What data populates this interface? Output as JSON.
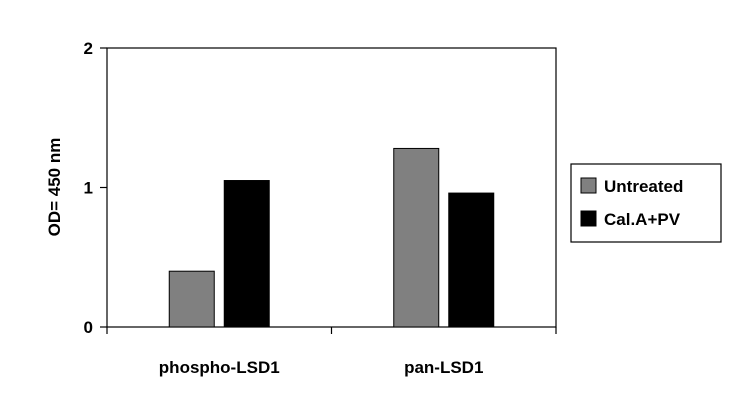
{
  "chart_data": {
    "type": "bar",
    "title": "",
    "xlabel": "",
    "ylabel": "OD= 450 nm",
    "ylim": [
      0,
      2
    ],
    "yticks": [
      0,
      1,
      2
    ],
    "categories": [
      "phospho-LSD1",
      "pan-LSD1"
    ],
    "series": [
      {
        "name": "Untreated",
        "values": [
          0.4,
          1.28
        ],
        "color": "#808080"
      },
      {
        "name": "Cal.A+PV",
        "values": [
          1.05,
          0.96
        ],
        "color": "#000000"
      }
    ],
    "grid": false,
    "legend_position": "right"
  }
}
